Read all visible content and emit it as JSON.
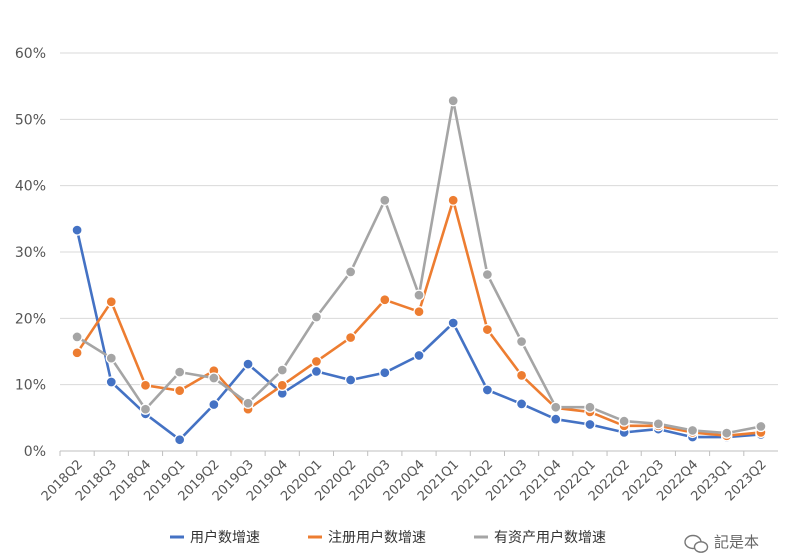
{
  "chart_data": {
    "type": "line",
    "categories": [
      "2018Q2",
      "2018Q3",
      "2018Q4",
      "2019Q1",
      "2019Q2",
      "2019Q3",
      "2019Q4",
      "2020Q1",
      "2020Q2",
      "2020Q3",
      "2020Q4",
      "2021Q1",
      "2021Q2",
      "2021Q3",
      "2021Q4",
      "2022Q1",
      "2022Q2",
      "2022Q3",
      "2022Q4",
      "2023Q1",
      "2023Q2"
    ],
    "series": [
      {
        "name": "用户数增速",
        "color": "#4472C4",
        "values": [
          33.3,
          10.4,
          5.6,
          1.7,
          7.0,
          13.1,
          8.7,
          12.0,
          10.7,
          11.8,
          14.4,
          19.3,
          9.2,
          7.1,
          4.8,
          4.0,
          2.8,
          3.3,
          2.1,
          2.1,
          2.5
        ]
      },
      {
        "name": "注册用户数增速",
        "color": "#ED7D31",
        "values": [
          14.8,
          22.5,
          9.9,
          9.1,
          12.1,
          6.3,
          9.9,
          13.5,
          17.1,
          22.8,
          21.0,
          37.8,
          18.3,
          11.4,
          6.5,
          5.9,
          3.8,
          3.8,
          2.8,
          2.3,
          2.8
        ]
      },
      {
        "name": "有资产用户数增速",
        "color": "#A5A5A5",
        "values": [
          17.2,
          14.0,
          6.3,
          11.9,
          11.0,
          7.2,
          12.2,
          20.2,
          27.0,
          37.8,
          23.5,
          52.8,
          26.6,
          16.5,
          6.6,
          6.6,
          4.5,
          4.1,
          3.1,
          2.7,
          3.7
        ]
      }
    ],
    "ylim": [
      0,
      60
    ],
    "yticks": [
      "0%",
      "10%",
      "20%",
      "30%",
      "40%",
      "50%",
      "60%"
    ],
    "grid": true,
    "legend_position": "bottom"
  },
  "watermark": "記是本"
}
